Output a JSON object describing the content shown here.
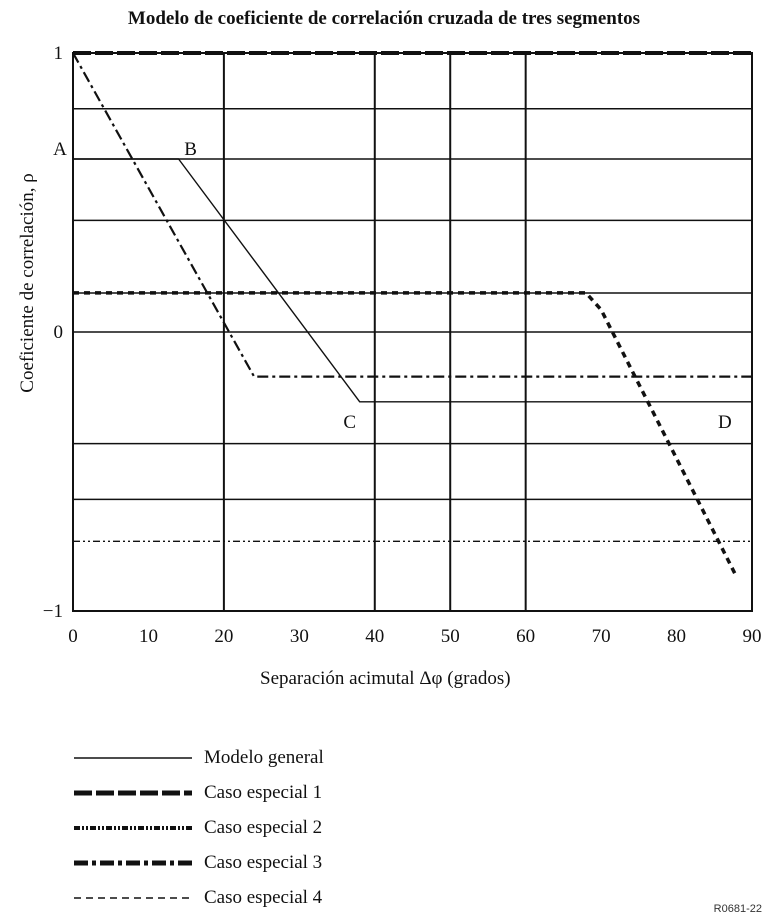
{
  "chart_data": {
    "type": "line",
    "title": "Modelo de coeficiente de correlación cruzada de tres segmentos",
    "xlabel": "Separación acimutal Δφ (grados)",
    "ylabel": "Coeficiente de correlación, ρ",
    "xlim": [
      0,
      90
    ],
    "ylim": [
      -1,
      1
    ],
    "x_ticks": [
      "0",
      "10",
      "20",
      "30",
      "40",
      "50",
      "60",
      "70",
      "80",
      "90"
    ],
    "y_ticks": [
      "−1",
      "0",
      "1"
    ],
    "grid": true,
    "point_labels": [
      {
        "text": "A",
        "x": 0,
        "y": 0.62
      },
      {
        "text": "B",
        "x": 14,
        "y": 0.62
      },
      {
        "text": "C",
        "x": 38,
        "y": -0.25
      },
      {
        "text": "D",
        "x": 88,
        "y": -0.25
      }
    ],
    "series": [
      {
        "name": "Modelo general",
        "style": "solid",
        "x": [
          0,
          14,
          38,
          90
        ],
        "y": [
          0.62,
          0.62,
          -0.25,
          -0.25
        ]
      },
      {
        "name": "Caso especial 1",
        "style": "long-dash",
        "x": [
          0,
          90
        ],
        "y": [
          1,
          1
        ]
      },
      {
        "name": "Caso especial 2",
        "style": "dash-dot-dot",
        "x": [
          0,
          90
        ],
        "y": [
          -0.75,
          -0.75
        ]
      },
      {
        "name": "Caso especial 3",
        "style": "dash-dot",
        "x": [
          0,
          24,
          90
        ],
        "y": [
          1,
          -0.16,
          -0.16
        ]
      },
      {
        "name": "Caso especial 4",
        "style": "short-dash",
        "x": [
          0,
          68,
          70,
          88
        ],
        "y": [
          0.14,
          0.14,
          0.08,
          -0.88
        ]
      }
    ]
  },
  "figure_id": "R0681-22"
}
